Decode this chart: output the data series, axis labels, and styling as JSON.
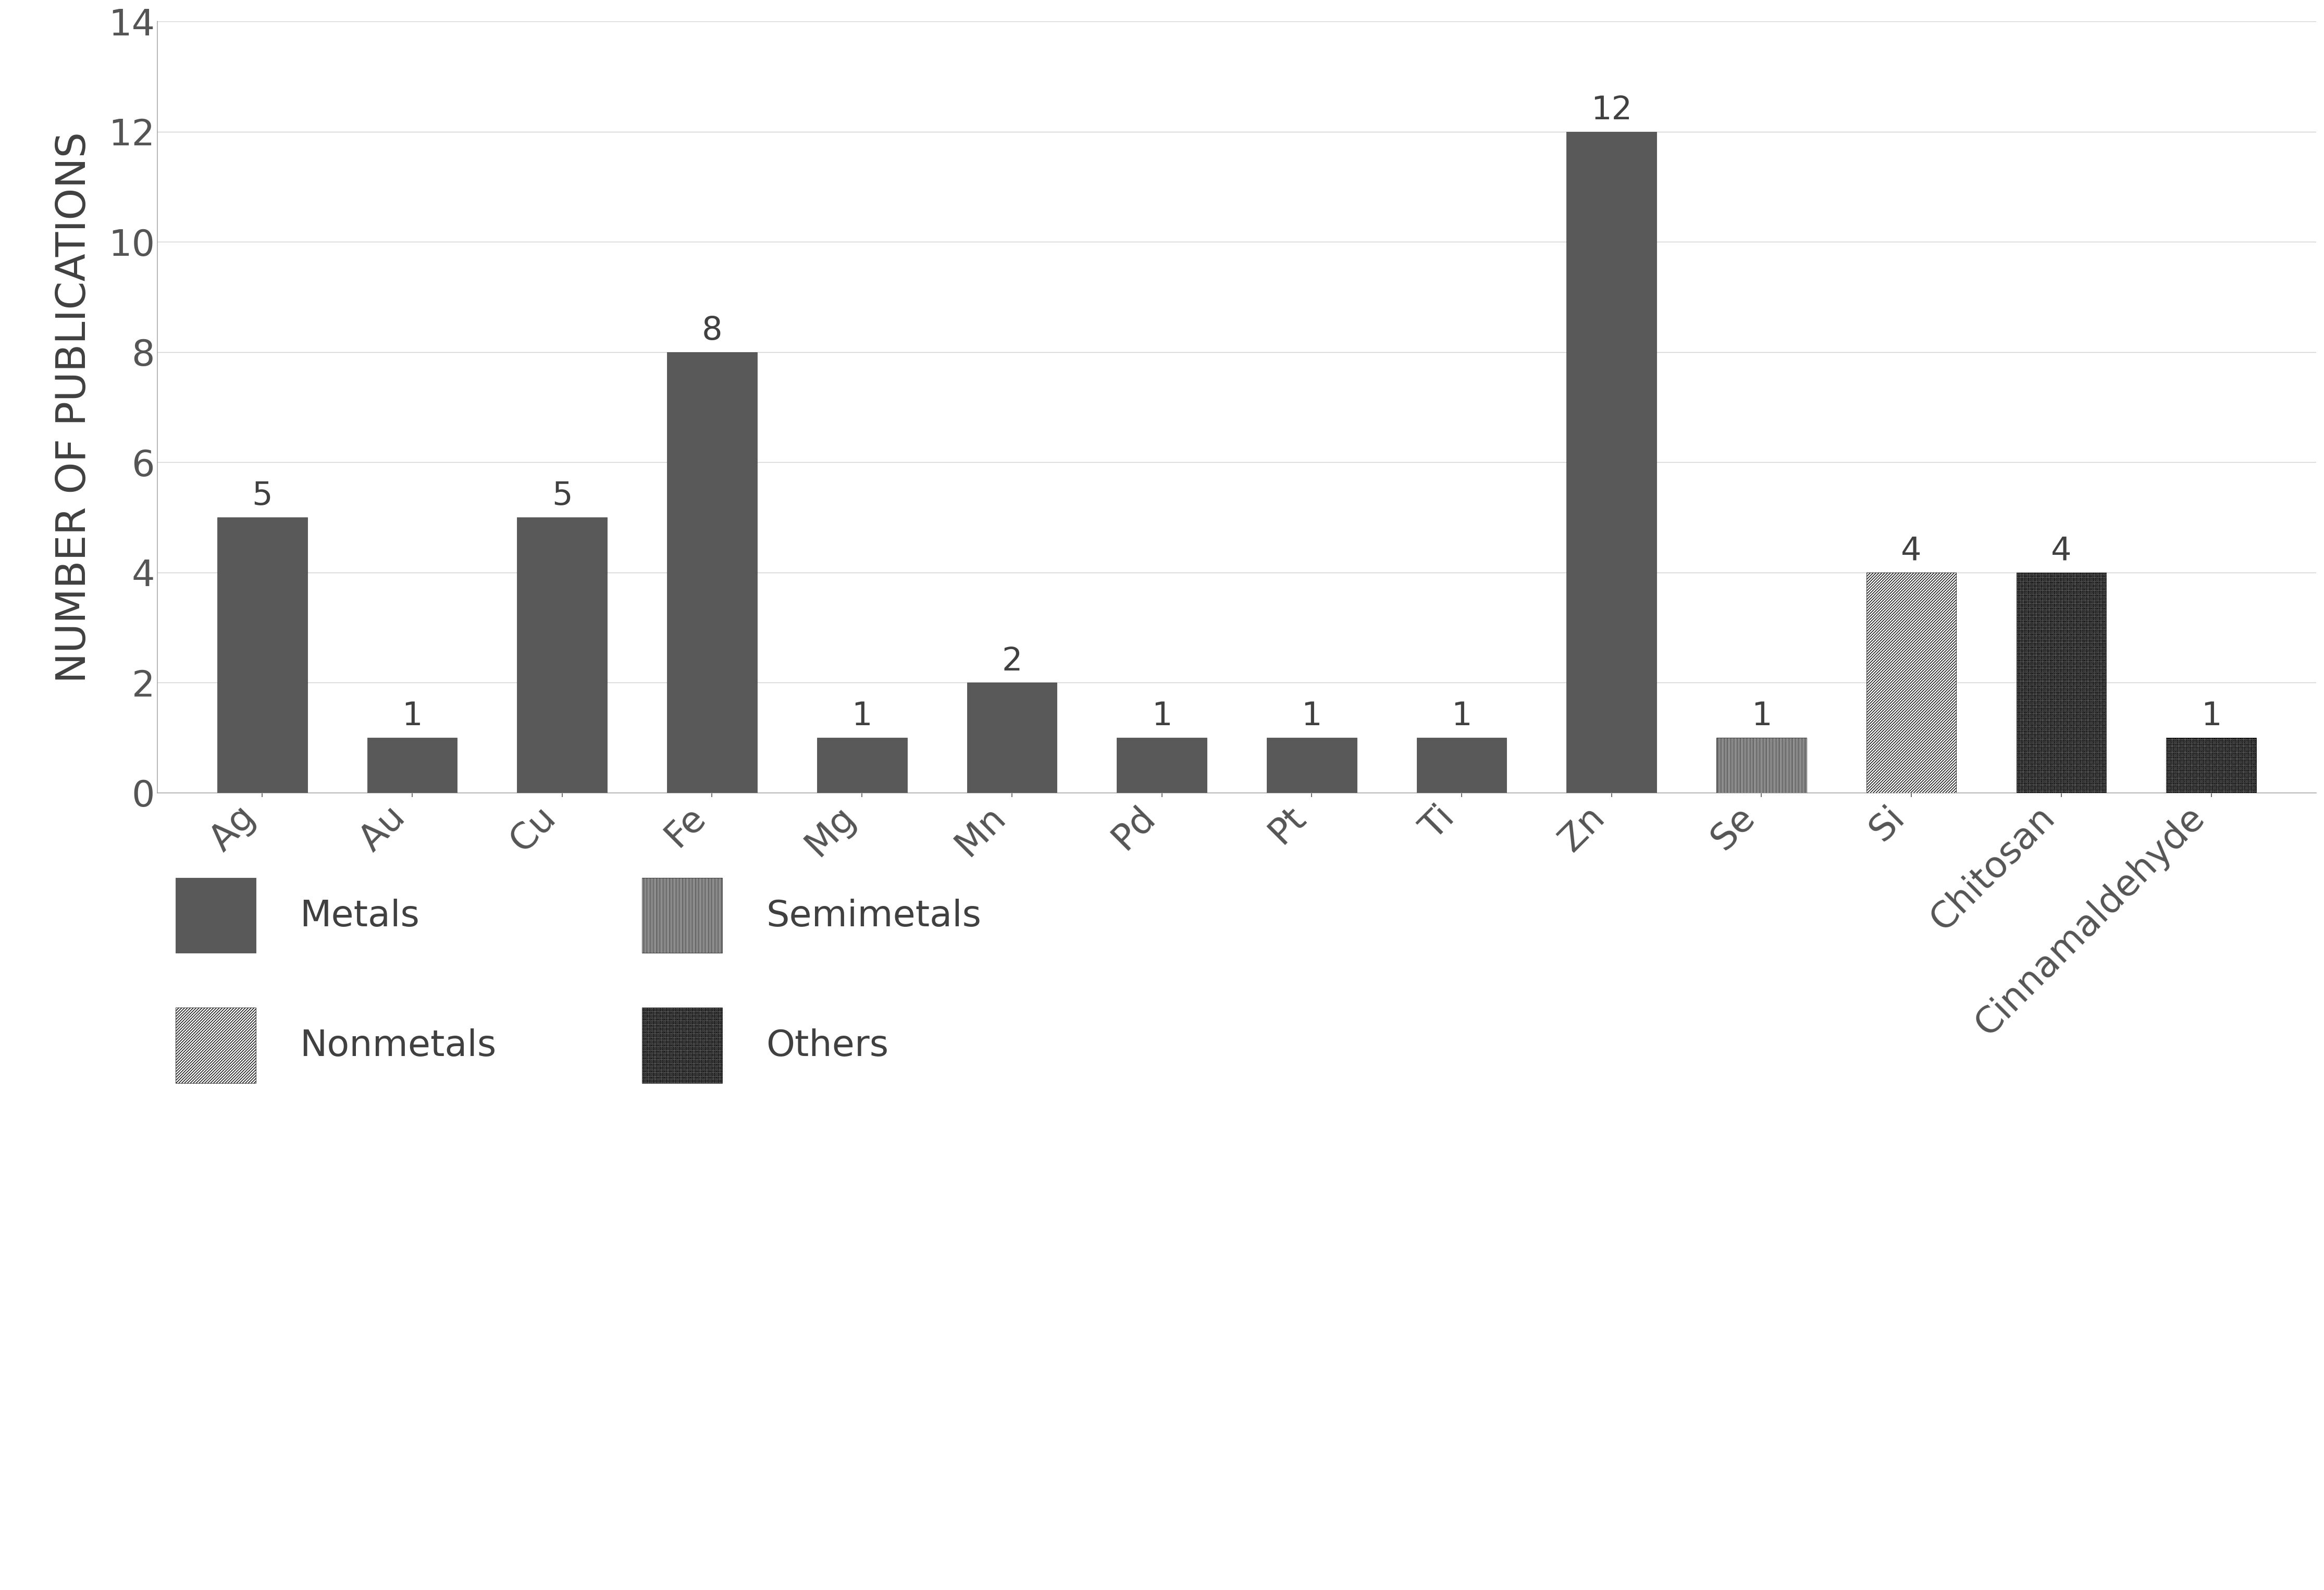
{
  "categories": [
    "Ag",
    "Au",
    "Cu",
    "Fe",
    "Mg",
    "Mn",
    "Pd",
    "Pt",
    "Ti",
    "Zn",
    "Se",
    "Si",
    "Chitosan",
    "Cinnamaldehyde"
  ],
  "values": [
    5,
    1,
    5,
    8,
    1,
    2,
    1,
    1,
    1,
    12,
    1,
    4,
    4,
    1
  ],
  "bar_types": [
    "metal",
    "metal",
    "metal",
    "metal",
    "metal",
    "metal",
    "metal",
    "metal",
    "metal",
    "metal",
    "semimetal",
    "nonmetal",
    "other",
    "other"
  ],
  "metal_color": "#595959",
  "ylabel": "NUMBER OF PUBLICATIONS",
  "ylim": [
    0,
    14
  ],
  "yticks": [
    0,
    2,
    4,
    6,
    8,
    10,
    12,
    14
  ],
  "background_color": "#ffffff",
  "bar_width": 0.6,
  "axis_fontsize": 20,
  "tick_fontsize": 18,
  "label_fontsize": 18,
  "annotation_fontsize": 16
}
